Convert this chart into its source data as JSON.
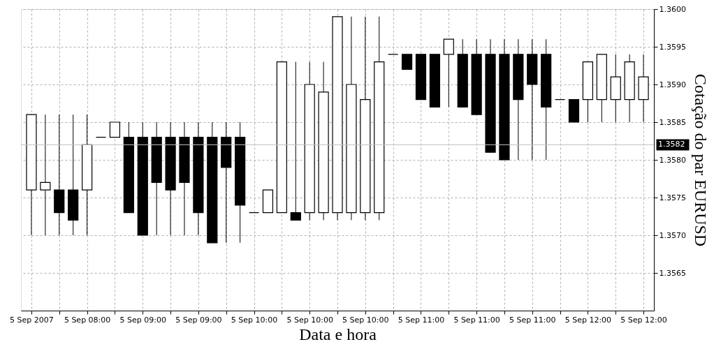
{
  "chart_data": {
    "type": "candlestick",
    "xlabel": "Data e hora",
    "ylabel": "Cotação do par EURUSD",
    "categories": [
      "5 Sep 2007",
      null,
      null,
      null,
      "5 Sep 08:00",
      null,
      null,
      null,
      "5 Sep 09:00",
      null,
      null,
      null,
      "5 Sep 09:00",
      null,
      null,
      null,
      "5 Sep 10:00",
      null,
      null,
      null,
      "5 Sep 10:00",
      null,
      null,
      null,
      "5 Sep 10:00",
      null,
      null,
      null,
      "5 Sep 11:00",
      null,
      null,
      null,
      "5 Sep 11:00",
      null,
      null,
      null,
      "5 Sep 11:00",
      null,
      null,
      null,
      "5 Sep 12:00",
      null,
      null,
      null,
      "5 Sep 12:00"
    ],
    "ohlc": [
      [
        1.3576,
        1.3586,
        1.357,
        1.3586
      ],
      [
        1.3576,
        1.3586,
        1.357,
        1.3577
      ],
      [
        1.3576,
        1.3586,
        1.357,
        1.3573
      ],
      [
        1.3576,
        1.3586,
        1.357,
        1.3572
      ],
      [
        1.3576,
        1.3586,
        1.357,
        1.3582
      ],
      [
        1.3583,
        1.3583,
        1.3583,
        1.3583
      ],
      [
        1.3583,
        1.3585,
        1.3583,
        1.3585
      ],
      [
        1.3583,
        1.3585,
        1.3573,
        1.3573
      ],
      [
        1.3583,
        1.3585,
        1.357,
        1.357
      ],
      [
        1.3583,
        1.3585,
        1.357,
        1.3577
      ],
      [
        1.3583,
        1.3585,
        1.357,
        1.3576
      ],
      [
        1.3583,
        1.3585,
        1.357,
        1.3577
      ],
      [
        1.3583,
        1.3585,
        1.357,
        1.3573
      ],
      [
        1.3583,
        1.3585,
        1.3569,
        1.3569
      ],
      [
        1.3583,
        1.3585,
        1.3569,
        1.3579
      ],
      [
        1.3583,
        1.3585,
        1.3569,
        1.3574
      ],
      [
        1.3573,
        1.3573,
        1.3573,
        1.3573
      ],
      [
        1.3573,
        1.3576,
        1.3573,
        1.3576
      ],
      [
        1.3573,
        1.3593,
        1.3573,
        1.3593
      ],
      [
        1.3573,
        1.3593,
        1.3572,
        1.3572
      ],
      [
        1.3573,
        1.3593,
        1.3572,
        1.359
      ],
      [
        1.3573,
        1.3593,
        1.3572,
        1.3589
      ],
      [
        1.3573,
        1.3599,
        1.3572,
        1.3599
      ],
      [
        1.3573,
        1.3599,
        1.3572,
        1.359
      ],
      [
        1.3573,
        1.3599,
        1.3572,
        1.3588
      ],
      [
        1.3573,
        1.3599,
        1.3572,
        1.3593
      ],
      [
        1.3594,
        1.3594,
        1.3594,
        1.3594
      ],
      [
        1.3594,
        1.3594,
        1.3592,
        1.3592
      ],
      [
        1.3594,
        1.3594,
        1.3588,
        1.3588
      ],
      [
        1.3594,
        1.3594,
        1.3587,
        1.3587
      ],
      [
        1.3594,
        1.3596,
        1.3587,
        1.3596
      ],
      [
        1.3594,
        1.3596,
        1.3587,
        1.3587
      ],
      [
        1.3594,
        1.3596,
        1.3586,
        1.3586
      ],
      [
        1.3594,
        1.3596,
        1.3581,
        1.3581
      ],
      [
        1.3594,
        1.3596,
        1.358,
        1.358
      ],
      [
        1.3594,
        1.3596,
        1.358,
        1.3588
      ],
      [
        1.3594,
        1.3596,
        1.358,
        1.359
      ],
      [
        1.3594,
        1.3596,
        1.358,
        1.3587
      ],
      [
        1.3588,
        1.3588,
        1.3588,
        1.3588
      ],
      [
        1.3588,
        1.3588,
        1.3585,
        1.3585
      ],
      [
        1.3588,
        1.3593,
        1.3585,
        1.3593
      ],
      [
        1.3588,
        1.3594,
        1.3585,
        1.3594
      ],
      [
        1.3588,
        1.3594,
        1.3585,
        1.3591
      ],
      [
        1.3588,
        1.3594,
        1.3585,
        1.3593
      ],
      [
        1.3588,
        1.3594,
        1.3585,
        1.3591
      ]
    ],
    "colors": [
      "#ffffff",
      "#ffffff",
      "#000000",
      "#000000",
      "#ffffff",
      "#000000",
      "#ffffff",
      "#000000",
      "#000000",
      "#000000",
      "#000000",
      "#000000",
      "#000000",
      "#000000",
      "#000000",
      "#000000",
      "#000000",
      "#ffffff",
      "#ffffff",
      "#000000",
      "#ffffff",
      "#ffffff",
      "#ffffff",
      "#ffffff",
      "#ffffff",
      "#ffffff",
      "#000000",
      "#000000",
      "#000000",
      "#000000",
      "#ffffff",
      "#000000",
      "#000000",
      "#000000",
      "#000000",
      "#000000",
      "#000000",
      "#000000",
      "#000000",
      "#000000",
      "#ffffff",
      "#ffffff",
      "#ffffff",
      "#ffffff",
      "#ffffff"
    ],
    "ylim": [
      1.356,
      1.36
    ],
    "yticks": [
      {
        "value": 1.3565,
        "label": "1.3565"
      },
      {
        "value": 1.357,
        "label": "1.3570"
      },
      {
        "value": 1.3575,
        "label": "1.3575"
      },
      {
        "value": 1.358,
        "label": "1.3580"
      },
      {
        "value": 1.3585,
        "label": "1.3585"
      },
      {
        "value": 1.359,
        "label": "1.3590"
      },
      {
        "value": 1.3595,
        "label": "1.3595"
      },
      {
        "value": 1.36,
        "label": "1.3600"
      }
    ],
    "ref_lines": [
      {
        "axis": "y",
        "value": 1.3582,
        "label": "1.3582",
        "color": "#c0c0c0"
      }
    ],
    "grid": true
  }
}
